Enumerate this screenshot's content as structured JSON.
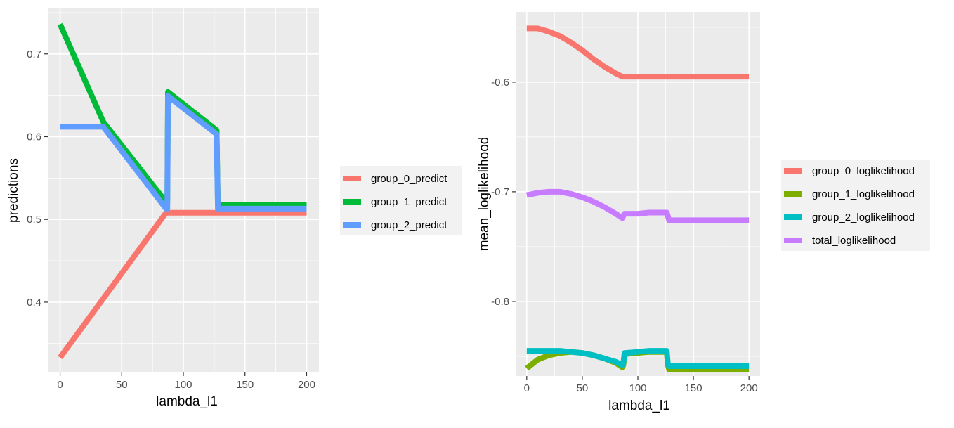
{
  "chart_data": [
    {
      "type": "line",
      "xlabel": "lambda_l1",
      "ylabel": "predictions",
      "xlim": [
        -10,
        210
      ],
      "ylim": [
        0.315,
        0.755
      ],
      "xticks": [
        0,
        50,
        100,
        150,
        200
      ],
      "yticks": [
        0.4,
        0.5,
        0.6,
        0.7
      ],
      "xtick_labels": [
        "0",
        "50",
        "100",
        "150",
        "200"
      ],
      "ytick_labels": [
        "0.4",
        "0.5",
        "0.6",
        "0.7"
      ],
      "grid": true,
      "legend_position": "right",
      "series": [
        {
          "name": "group_0_predict",
          "color": "#F8766D",
          "x": [
            0,
            86,
            200
          ],
          "y": [
            0.333,
            0.508,
            0.508
          ]
        },
        {
          "name": "group_1_predict",
          "color": "#00BA38",
          "x": [
            0,
            35,
            86,
            87,
            87.5,
            127,
            128,
            200
          ],
          "y": [
            0.736,
            0.618,
            0.521,
            0.521,
            0.654,
            0.608,
            0.518,
            0.518
          ]
        },
        {
          "name": "group_2_predict",
          "color": "#619CFF",
          "x": [
            0,
            35,
            86,
            87,
            87.5,
            127,
            128,
            200
          ],
          "y": [
            0.612,
            0.612,
            0.513,
            0.513,
            0.649,
            0.603,
            0.513,
            0.513
          ]
        }
      ]
    },
    {
      "type": "line",
      "xlabel": "lambda_l1",
      "ylabel": "mean_loglikelihood",
      "xlim": [
        -10,
        210
      ],
      "ylim": [
        -0.868,
        -0.536
      ],
      "xticks": [
        0,
        50,
        100,
        150,
        200
      ],
      "yticks": [
        -0.8,
        -0.7,
        -0.6
      ],
      "xtick_labels": [
        "0",
        "50",
        "100",
        "150",
        "200"
      ],
      "ytick_labels": [
        "-0.8",
        "-0.7",
        "-0.6"
      ],
      "grid": true,
      "legend_position": "right",
      "series": [
        {
          "name": "group_0_loglikelihood",
          "color": "#F8766D",
          "x": [
            0,
            10,
            20,
            30,
            40,
            50,
            60,
            70,
            80,
            86,
            100,
            127,
            150,
            200
          ],
          "y": [
            -0.551,
            -0.551,
            -0.554,
            -0.558,
            -0.564,
            -0.571,
            -0.579,
            -0.586,
            -0.592,
            -0.595,
            -0.595,
            -0.595,
            -0.595,
            -0.595
          ]
        },
        {
          "name": "group_1_loglikelihood",
          "color": "#7CAE00",
          "x": [
            0,
            10,
            20,
            30,
            40,
            50,
            60,
            70,
            80,
            86,
            87,
            88,
            100,
            110,
            126,
            127,
            128,
            150,
            200
          ],
          "y": [
            -0.861,
            -0.853,
            -0.849,
            -0.847,
            -0.846,
            -0.847,
            -0.849,
            -0.852,
            -0.856,
            -0.86,
            -0.858,
            -0.848,
            -0.847,
            -0.846,
            -0.846,
            -0.858,
            -0.862,
            -0.862,
            -0.862
          ]
        },
        {
          "name": "group_2_loglikelihood",
          "color": "#00BFC4",
          "x": [
            0,
            30,
            40,
            50,
            60,
            70,
            80,
            86,
            87,
            88,
            100,
            110,
            126,
            127,
            128,
            150,
            200
          ],
          "y": [
            -0.845,
            -0.845,
            -0.846,
            -0.847,
            -0.849,
            -0.852,
            -0.855,
            -0.858,
            -0.856,
            -0.847,
            -0.846,
            -0.845,
            -0.845,
            -0.857,
            -0.859,
            -0.859,
            -0.859
          ]
        },
        {
          "name": "total_loglikelihood",
          "color": "#C77CFF",
          "x": [
            0,
            10,
            20,
            30,
            40,
            50,
            60,
            70,
            80,
            86,
            87,
            88,
            100,
            110,
            126,
            127,
            128,
            150,
            200
          ],
          "y": [
            -0.703,
            -0.701,
            -0.7,
            -0.7,
            -0.702,
            -0.705,
            -0.709,
            -0.714,
            -0.72,
            -0.724,
            -0.722,
            -0.72,
            -0.72,
            -0.719,
            -0.719,
            -0.722,
            -0.726,
            -0.726,
            -0.726
          ]
        }
      ]
    }
  ]
}
